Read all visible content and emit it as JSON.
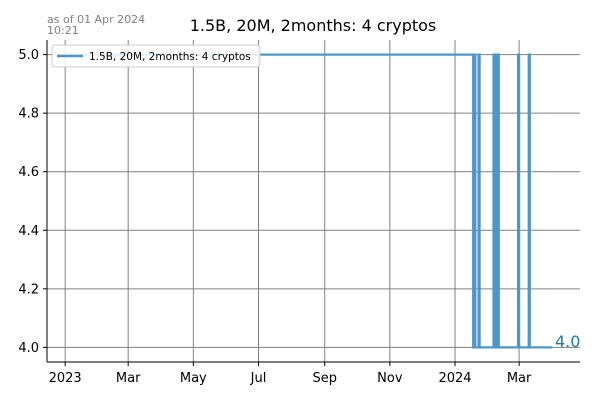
{
  "chart_data": {
    "type": "line",
    "title": "1.5B, 20M, 2months: 4 cryptos",
    "timestamp_lines": [
      "as of 01 Apr 2024",
      "10:21"
    ],
    "xlabel": "",
    "ylabel": "",
    "x_range": [
      "2022-12-15",
      "2024-04-27"
    ],
    "ylim": [
      3.95,
      5.05
    ],
    "y_ticks": [
      "4.0",
      "4.2",
      "4.4",
      "4.6",
      "4.8",
      "5.0"
    ],
    "x_ticks": [
      {
        "date": "2023-01-01",
        "label": "2023"
      },
      {
        "date": "2023-03-01",
        "label": "Mar"
      },
      {
        "date": "2023-05-01",
        "label": "May"
      },
      {
        "date": "2023-07-01",
        "label": "Jul"
      },
      {
        "date": "2023-09-01",
        "label": "Sep"
      },
      {
        "date": "2023-11-01",
        "label": "Nov"
      },
      {
        "date": "2024-01-01",
        "label": "2024"
      },
      {
        "date": "2024-03-01",
        "label": "Mar"
      }
    ],
    "grid": true,
    "legend_position": "top-left",
    "series": [
      {
        "name": "1.5B, 20M, 2months: 4 cryptos",
        "color": "#4c96c9",
        "points": [
          {
            "x": "2023-01-01",
            "y": 5
          },
          {
            "x": "2024-01-18",
            "y": 5
          },
          {
            "x": "2024-01-18",
            "y": 4
          },
          {
            "x": "2024-01-19",
            "y": 4
          },
          {
            "x": "2024-01-19",
            "y": 5
          },
          {
            "x": "2024-01-20",
            "y": 5
          },
          {
            "x": "2024-01-20",
            "y": 4
          },
          {
            "x": "2024-01-23",
            "y": 4
          },
          {
            "x": "2024-01-23",
            "y": 5
          },
          {
            "x": "2024-01-24",
            "y": 5
          },
          {
            "x": "2024-01-24",
            "y": 4
          },
          {
            "x": "2024-02-06",
            "y": 4
          },
          {
            "x": "2024-02-06",
            "y": 5
          },
          {
            "x": "2024-02-07",
            "y": 5
          },
          {
            "x": "2024-02-07",
            "y": 4
          },
          {
            "x": "2024-02-08",
            "y": 4
          },
          {
            "x": "2024-02-08",
            "y": 5
          },
          {
            "x": "2024-02-09",
            "y": 5
          },
          {
            "x": "2024-02-09",
            "y": 4
          },
          {
            "x": "2024-02-10",
            "y": 4
          },
          {
            "x": "2024-02-10",
            "y": 5
          },
          {
            "x": "2024-02-11",
            "y": 5
          },
          {
            "x": "2024-02-11",
            "y": 4
          },
          {
            "x": "2024-02-29",
            "y": 4
          },
          {
            "x": "2024-02-29",
            "y": 5
          },
          {
            "x": "2024-03-01",
            "y": 5
          },
          {
            "x": "2024-03-01",
            "y": 4
          },
          {
            "x": "2024-03-10",
            "y": 4
          },
          {
            "x": "2024-03-10",
            "y": 5
          },
          {
            "x": "2024-03-11",
            "y": 5
          },
          {
            "x": "2024-03-11",
            "y": 4
          },
          {
            "x": "2024-04-01",
            "y": 4
          }
        ],
        "end_label": "4.0"
      }
    ]
  }
}
